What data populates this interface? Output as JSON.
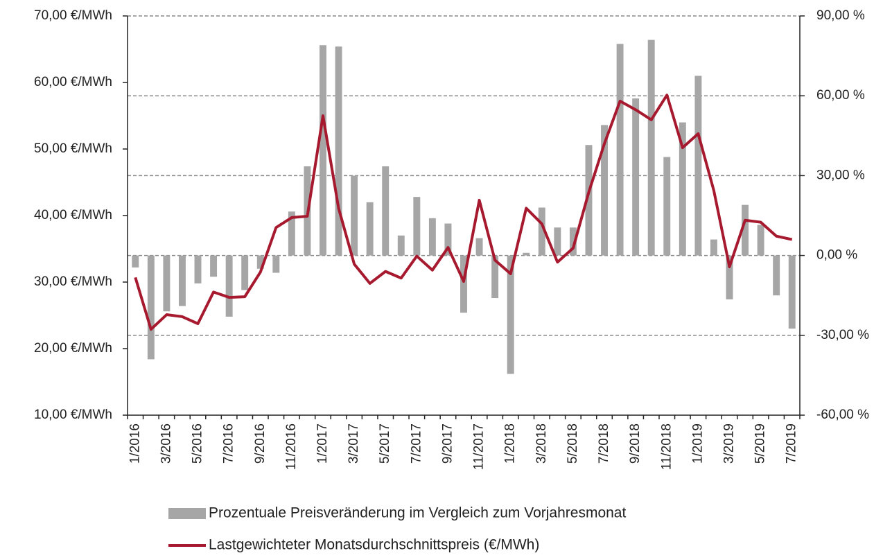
{
  "chart_data": {
    "type": "bar",
    "categories": [
      "1/2016",
      null,
      "3/2016",
      null,
      "5/2016",
      null,
      "7/2016",
      null,
      "9/2016",
      null,
      "11/2016",
      null,
      "1/2017",
      null,
      "3/2017",
      null,
      "5/2017",
      null,
      "7/2017",
      null,
      "9/2017",
      null,
      "11/2017",
      null,
      "1/2018",
      null,
      "3/2018",
      null,
      "5/2018",
      null,
      "7/2018",
      null,
      "9/2018",
      null,
      "11/2018",
      null,
      "1/2019",
      null,
      "3/2019",
      null,
      "5/2019",
      null,
      "7/2019"
    ],
    "series": [
      {
        "name": "Prozentuale Preisveränderung im Vergleich zum Vorjahresmonat",
        "type": "bar",
        "axis": "y2",
        "color": "#a6a6a6",
        "values": [
          -4.5,
          -39,
          -21,
          -19,
          -10.5,
          -8,
          -23,
          -13,
          -5,
          -6.5,
          16.5,
          33.5,
          79,
          78.5,
          30,
          20,
          33.5,
          7.5,
          22,
          14,
          12,
          -21.5,
          6.5,
          -16,
          -44.5,
          1,
          18,
          10.5,
          10.5,
          41.5,
          49,
          79.5,
          59,
          81,
          37,
          50,
          67.5,
          6,
          -16.5,
          19,
          11.5,
          -15,
          -27.5
        ]
      },
      {
        "name": "Lastgewichteter Monatsdurchschnittspreis (€/MWh)",
        "type": "line",
        "axis": "y",
        "color": "#a6192e",
        "values": [
          30.7,
          22.9,
          25.1,
          24.8,
          23.75,
          28.5,
          27.7,
          27.8,
          31.5,
          38.2,
          39.7,
          39.9,
          55,
          41.1,
          32.7,
          29.8,
          31.6,
          30.6,
          33.9,
          31.8,
          35.2,
          30.1,
          42.3,
          33.3,
          31.25,
          41.1,
          38.75,
          33,
          35.1,
          43.5,
          50.8,
          57.2,
          55.9,
          54.4,
          58.1,
          50.2,
          52.3,
          43.75,
          32.3,
          39.3,
          39,
          36.9,
          36.4
        ]
      }
    ],
    "ylim": [
      10,
      70
    ],
    "yticks": [
      {
        "value": 10,
        "label": "10,00 €/MWh"
      },
      {
        "value": 20,
        "label": "20,00 €/MWh"
      },
      {
        "value": 30,
        "label": "30,00 €/MWh"
      },
      {
        "value": 40,
        "label": "40,00 €/MWh"
      },
      {
        "value": 50,
        "label": "50,00 €/MWh"
      },
      {
        "value": 60,
        "label": "60,00 €/MWh"
      },
      {
        "value": 70,
        "label": "70,00 €/MWh"
      }
    ],
    "y2lim": [
      -60,
      90
    ],
    "y2ticks": [
      {
        "value": -60,
        "label": "-60,00 %"
      },
      {
        "value": -30,
        "label": "-30,00 %"
      },
      {
        "value": 0,
        "label": "0,00 %"
      },
      {
        "value": 30,
        "label": "30,00 %"
      },
      {
        "value": 60,
        "label": "60,00 %"
      },
      {
        "value": 90,
        "label": "90,00 %"
      }
    ],
    "grid": true,
    "legend": "bottom"
  }
}
